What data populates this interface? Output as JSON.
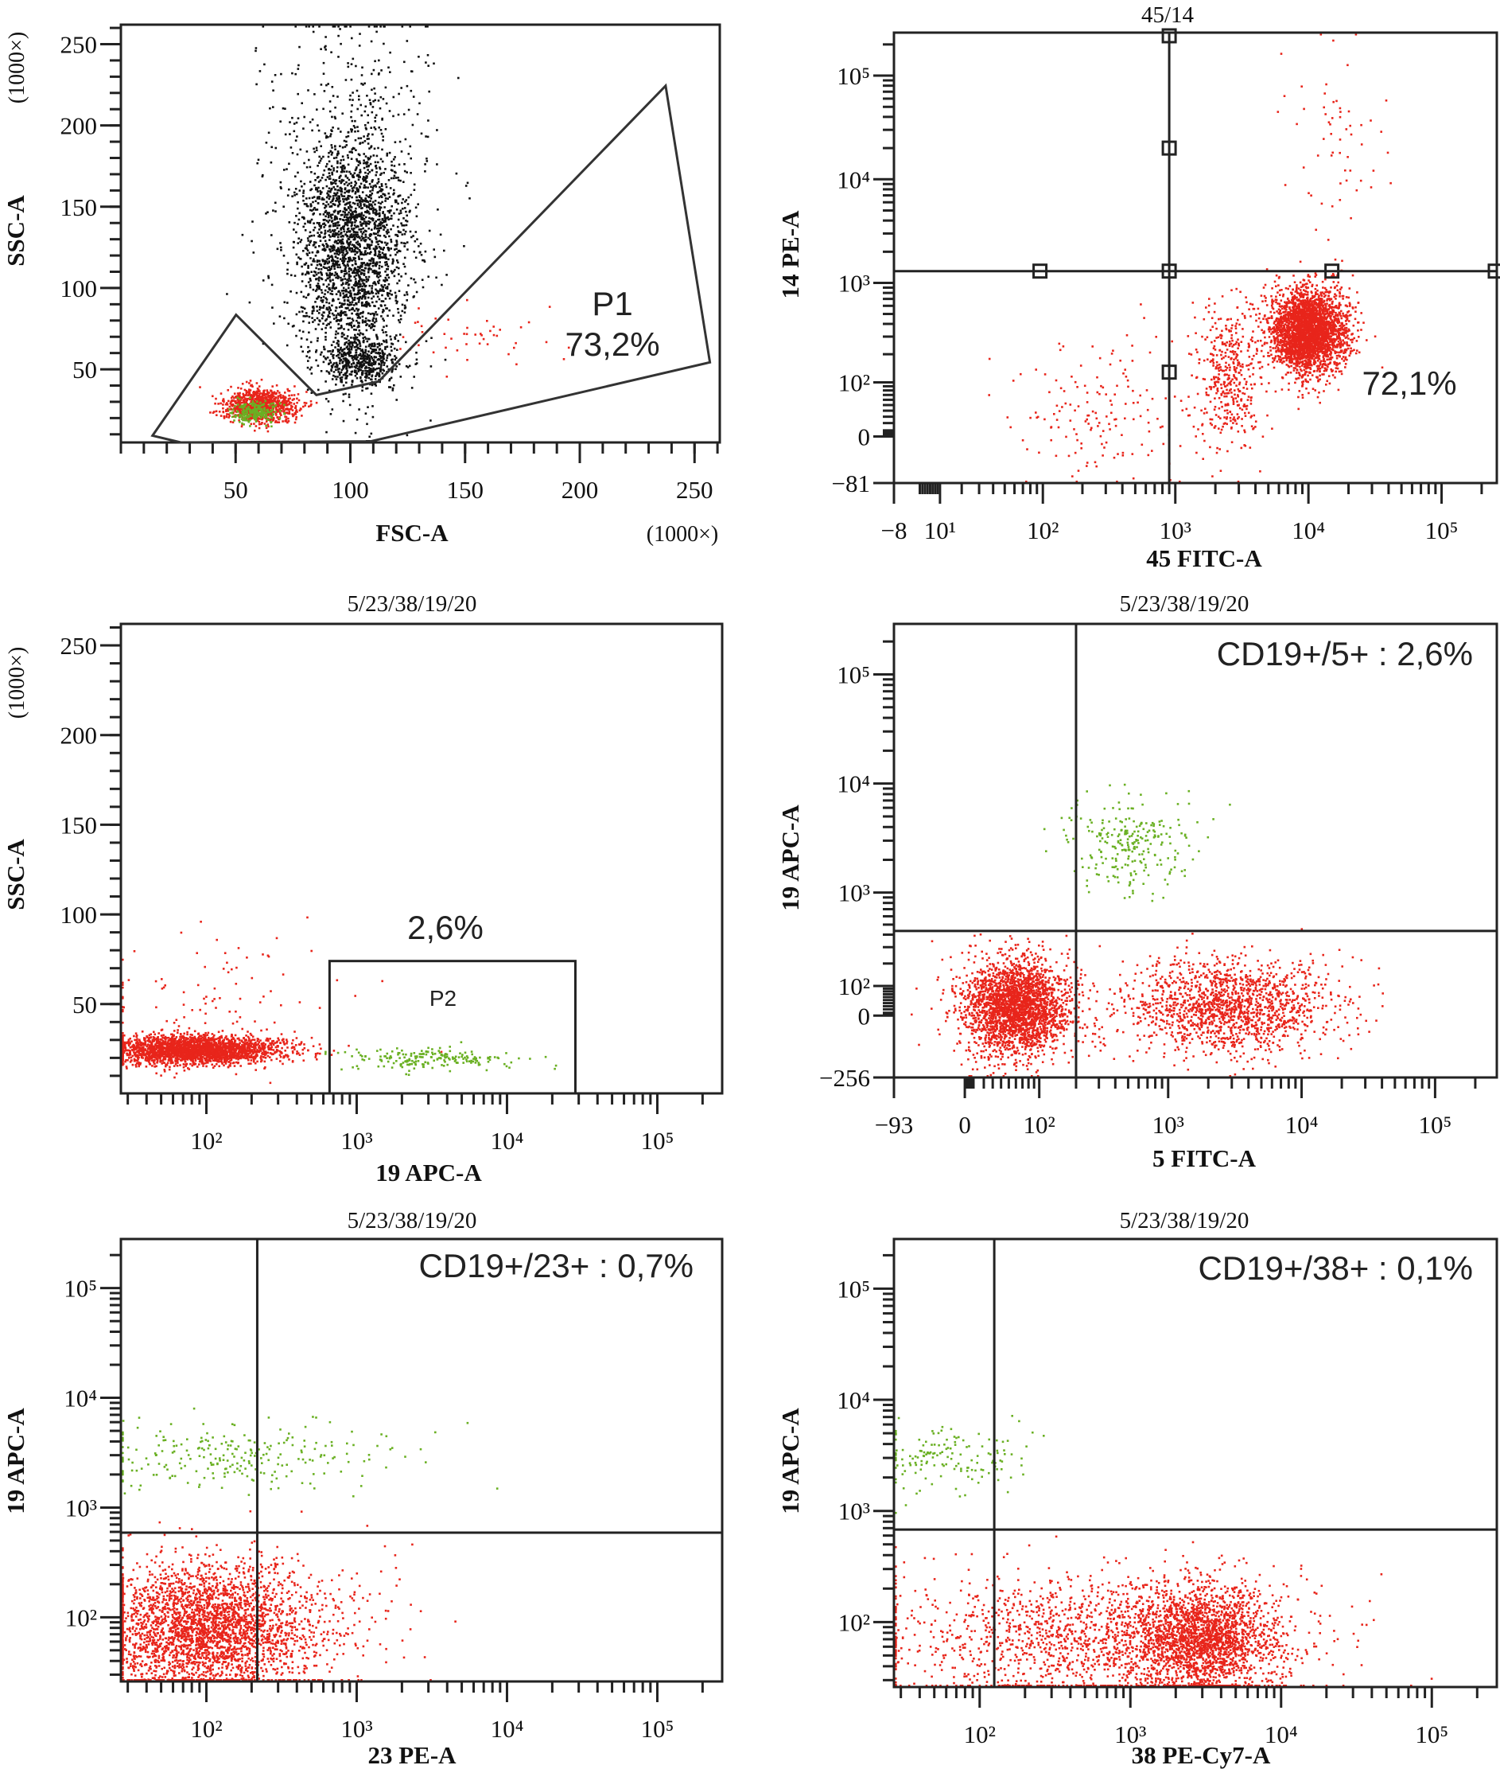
{
  "chart_data": [
    {
      "type": "scatter",
      "title": "",
      "xlabel": "FSC-A",
      "ylabel": "SSC-A",
      "x_unit": "(1000×)",
      "y_unit": "(1000×)",
      "x_axis": {
        "scale": "linear",
        "lim": [
          0,
          261
        ]
      },
      "y_axis": {
        "scale": "linear",
        "lim": [
          5,
          262
        ]
      },
      "x_ticks": [
        {
          "v": 50,
          "label": "50"
        },
        {
          "v": 100,
          "label": "100"
        },
        {
          "v": 150,
          "label": "150"
        },
        {
          "v": 200,
          "label": "200"
        },
        {
          "v": 250,
          "label": "250"
        }
      ],
      "y_ticks": [
        {
          "v": 50,
          "label": "50"
        },
        {
          "v": 100,
          "label": "100"
        },
        {
          "v": 150,
          "label": "150"
        },
        {
          "v": 200,
          "label": "200"
        },
        {
          "v": 250,
          "label": "250"
        }
      ],
      "populations": [
        {
          "color": "#111111",
          "n": 2300,
          "cx": 100,
          "cy": 125,
          "sx": 12,
          "sy": 38
        },
        {
          "color": "#111111",
          "n": 450,
          "cx": 105,
          "cy": 55,
          "sx": 8,
          "sy": 7
        },
        {
          "color": "#111111",
          "n": 350,
          "cx": 100,
          "cy": 175,
          "sx": 22,
          "sy": 55
        },
        {
          "color": "#e8251b",
          "n": 900,
          "cx": 60,
          "cy": 28,
          "sx": 8,
          "sy": 5
        },
        {
          "color": "#6ab023",
          "n": 220,
          "cx": 58,
          "cy": 24,
          "sx": 5,
          "sy": 3.5
        },
        {
          "color": "#e8251b",
          "n": 45,
          "cx": 150,
          "cy": 72,
          "sx": 16,
          "sy": 9
        }
      ],
      "gates": [
        {
          "type": "polygon",
          "name": "P1",
          "label": "73,2%",
          "vertices": [
            [
              13.8,
              9.2
            ],
            [
              50.2,
              83.5
            ],
            [
              85.2,
              34.2
            ],
            [
              112.3,
              42.5
            ],
            [
              237.4,
              224.4
            ],
            [
              256.7,
              54.3
            ],
            [
              108.9,
              5.7
            ],
            [
              26.1,
              5
            ]
          ]
        }
      ]
    },
    {
      "type": "scatter",
      "title": "45/14",
      "xlabel": "45 FITC-A",
      "ylabel": "14 PE-A",
      "x_axis": {
        "scale": "biexponential",
        "lim": [
          -8,
          260000
        ]
      },
      "y_axis": {
        "scale": "biexponential",
        "lim": [
          -81,
          260000
        ]
      },
      "x_ticks": [
        {
          "v": -8,
          "label": "−8"
        },
        {
          "v": 10,
          "label": "10¹"
        },
        {
          "v": 100,
          "label": "10²"
        },
        {
          "v": 1000,
          "label": "10³"
        },
        {
          "v": 10000,
          "label": "10⁴"
        },
        {
          "v": 100000,
          "label": "10⁵"
        }
      ],
      "y_ticks": [
        {
          "v": -81,
          "label": "−81"
        },
        {
          "v": 0,
          "label": "0"
        },
        {
          "v": 100,
          "label": "10²"
        },
        {
          "v": 1000,
          "label": "10³"
        },
        {
          "v": 10000,
          "label": "10⁴"
        },
        {
          "v": 100000,
          "label": "10⁵"
        }
      ],
      "populations": [
        {
          "color": "#e8251b",
          "n": 3000,
          "cx": 10000,
          "cy": 350,
          "sx": 0.14,
          "sy": 0.2
        },
        {
          "color": "#e8251b",
          "n": 420,
          "cx": 2500,
          "cy": 120,
          "sx": 0.12,
          "sy": 0.35
        },
        {
          "color": "#e8251b",
          "n": 160,
          "cx": 300,
          "cy": 40,
          "sx": 0.35,
          "sy": 0.4
        },
        {
          "color": "#e8251b",
          "n": 60,
          "cx": 15000,
          "cy": 20000,
          "sx": 0.2,
          "sy": 0.5
        }
      ],
      "gates": [
        {
          "type": "quadrant",
          "x": 900,
          "y": 1300,
          "label": "72,1%"
        }
      ]
    },
    {
      "type": "scatter",
      "title": "5/23/38/19/20",
      "xlabel": "19 APC-A",
      "ylabel": "SSC-A",
      "y_unit": "(1000×)",
      "x_axis": {
        "scale": "log",
        "lim": [
          27,
          270000
        ]
      },
      "y_axis": {
        "scale": "linear",
        "lim": [
          0.2,
          262
        ]
      },
      "x_ticks": [
        {
          "v": 100,
          "label": "10²"
        },
        {
          "v": 1000,
          "label": "10³"
        },
        {
          "v": 10000,
          "label": "10⁴"
        },
        {
          "v": 100000,
          "label": "10⁵"
        }
      ],
      "y_ticks": [
        {
          "v": 50,
          "label": "50"
        },
        {
          "v": 100,
          "label": "100"
        },
        {
          "v": 150,
          "label": "150"
        },
        {
          "v": 200,
          "label": "200"
        },
        {
          "v": 250,
          "label": "250"
        }
      ],
      "populations": [
        {
          "color": "#e8251b",
          "n": 2500,
          "cx": 80,
          "cy": 25,
          "sx": 0.3,
          "sy": 4
        },
        {
          "color": "#e8251b",
          "n": 100,
          "cx": 100,
          "cy": 50,
          "sx": 0.4,
          "sy": 20
        },
        {
          "color": "#6ab023",
          "n": 200,
          "cx": 3000,
          "cy": 20,
          "sx": 0.28,
          "sy": 3
        }
      ],
      "gates": [
        {
          "type": "rectangle",
          "name": "P2",
          "x": [
            660,
            28500
          ],
          "y": [
            0.2,
            74
          ],
          "label": "2,6%"
        }
      ]
    },
    {
      "type": "scatter",
      "title": "5/23/38/19/20",
      "xlabel": "5 FITC-A",
      "ylabel": "19 APC-A",
      "x_axis": {
        "scale": "biexponential",
        "lim": [
          -93,
          290000
        ]
      },
      "y_axis": {
        "scale": "biexponential",
        "lim": [
          -256,
          290000
        ]
      },
      "x_ticks": [
        {
          "v": -93,
          "label": "−93"
        },
        {
          "v": 0,
          "label": "0"
        },
        {
          "v": 100,
          "label": "10²"
        },
        {
          "v": 1000,
          "label": "10³"
        },
        {
          "v": 10000,
          "label": "10⁴"
        },
        {
          "v": 100000,
          "label": "10⁵"
        }
      ],
      "y_ticks": [
        {
          "v": -256,
          "label": "−256"
        },
        {
          "v": 0,
          "label": "0"
        },
        {
          "v": 100,
          "label": "10²"
        },
        {
          "v": 1000,
          "label": "10³"
        },
        {
          "v": 10000,
          "label": "10⁴"
        },
        {
          "v": 100000,
          "label": "10⁵"
        }
      ],
      "populations": [
        {
          "color": "#e8251b",
          "n": 2500,
          "cx": 60,
          "cy": 30,
          "sx": 0.2,
          "sy": 0.22
        },
        {
          "color": "#e8251b",
          "n": 1500,
          "cx": 2800,
          "cy": 30,
          "sx": 0.4,
          "sy": 0.22
        },
        {
          "color": "#6ab023",
          "n": 250,
          "cx": 500,
          "cy": 3000,
          "sx": 0.25,
          "sy": 0.2
        }
      ],
      "gates": [
        {
          "type": "quadrant",
          "x": 200,
          "y": 435,
          "label": "CD19+/5+ : 2,6%"
        }
      ]
    },
    {
      "type": "scatter",
      "title": "5/23/38/19/20",
      "xlabel": "23 PE-A",
      "ylabel": "19 APC-A",
      "x_axis": {
        "scale": "log",
        "lim": [
          27,
          270000
        ]
      },
      "y_axis": {
        "scale": "log",
        "lim": [
          26,
          280000
        ]
      },
      "x_ticks": [
        {
          "v": 100,
          "label": "10²"
        },
        {
          "v": 1000,
          "label": "10³"
        },
        {
          "v": 10000,
          "label": "10⁴"
        },
        {
          "v": 100000,
          "label": "10⁵"
        }
      ],
      "y_ticks": [
        {
          "v": 100,
          "label": "10²"
        },
        {
          "v": 1000,
          "label": "10³"
        },
        {
          "v": 10000,
          "label": "10⁴"
        },
        {
          "v": 100000,
          "label": "10⁵"
        }
      ],
      "populations": [
        {
          "color": "#e8251b",
          "n": 3000,
          "cx": 100,
          "cy": 80,
          "sx": 0.35,
          "sy": 0.3
        },
        {
          "color": "#e8251b",
          "n": 100,
          "cx": 500,
          "cy": 100,
          "sx": 0.4,
          "sy": 0.3
        },
        {
          "color": "#6ab023",
          "n": 250,
          "cx": 150,
          "cy": 3000,
          "sx": 0.5,
          "sy": 0.15
        }
      ],
      "gates": [
        {
          "type": "quadrant",
          "x": 218,
          "y": 590,
          "label": "CD19+/23+ : 0,7%"
        }
      ]
    },
    {
      "type": "scatter",
      "title": "5/23/38/19/20",
      "xlabel": "38 PE-Cy7-A",
      "ylabel": "19 APC-A",
      "x_axis": {
        "scale": "log",
        "lim": [
          27,
          270000
        ]
      },
      "y_axis": {
        "scale": "log",
        "lim": [
          26,
          280000
        ]
      },
      "x_ticks": [
        {
          "v": 100,
          "label": "10²"
        },
        {
          "v": 1000,
          "label": "10³"
        },
        {
          "v": 10000,
          "label": "10⁴"
        },
        {
          "v": 100000,
          "label": "10⁵"
        }
      ],
      "y_ticks": [
        {
          "v": 100,
          "label": "10²"
        },
        {
          "v": 1000,
          "label": "10³"
        },
        {
          "v": 10000,
          "label": "10⁴"
        },
        {
          "v": 100000,
          "label": "10⁵"
        }
      ],
      "populations": [
        {
          "color": "#e8251b",
          "n": 2000,
          "cx": 3000,
          "cy": 70,
          "sx": 0.25,
          "sy": 0.25
        },
        {
          "color": "#e8251b",
          "n": 1500,
          "cx": 500,
          "cy": 70,
          "sx": 0.7,
          "sy": 0.3
        },
        {
          "color": "#6ab023",
          "n": 150,
          "cx": 60,
          "cy": 3000,
          "sx": 0.3,
          "sy": 0.15
        }
      ],
      "gates": [
        {
          "type": "quadrant",
          "x": 125,
          "y": 680,
          "label": "CD19+/38+ : 0,1%"
        }
      ]
    }
  ]
}
